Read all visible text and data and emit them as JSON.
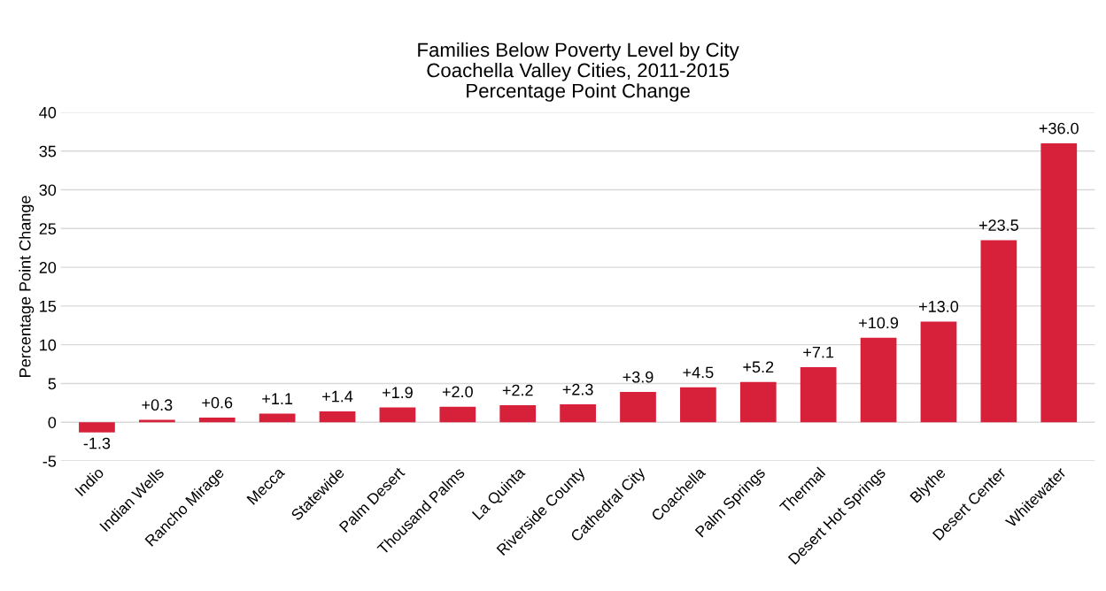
{
  "chart_data": {
    "type": "bar",
    "title": "Families Below Poverty Level by City\nCoachella Valley Cities, 2011-2015\nPercentage Point Change",
    "ylabel": "Percentage Point Change",
    "categories": [
      "Indio",
      "Indian Wells",
      "Rancho Mirage",
      "Mecca",
      "Statewide",
      "Palm Desert",
      "Thousand Palms",
      "La Quinta",
      "Riverside County",
      "Cathedral City",
      "Coachella",
      "Palm Springs",
      "Thermal",
      "Desert Hot Springs",
      "Blythe",
      "Desert Center",
      "Whitewater"
    ],
    "values": [
      -1.3,
      0.3,
      0.6,
      1.1,
      1.4,
      1.9,
      2.0,
      2.2,
      2.3,
      3.9,
      4.5,
      5.2,
      7.1,
      10.9,
      13.0,
      23.5,
      36.0
    ],
    "value_labels": [
      "-1.3",
      "+0.3",
      "+0.6",
      "+1.1",
      "+1.4",
      "+1.9",
      "+2.0",
      "+2.2",
      "+2.3",
      "+3.9",
      "+4.5",
      "+5.2",
      "+7.1",
      "+10.9",
      "+13.0",
      "+23.5",
      "+36.0"
    ],
    "color": "#d7213a",
    "ylim": [
      -5,
      40
    ],
    "yticks": [
      -5,
      0,
      5,
      10,
      15,
      20,
      25,
      30,
      35,
      40
    ],
    "grid": "y",
    "legend": false
  }
}
